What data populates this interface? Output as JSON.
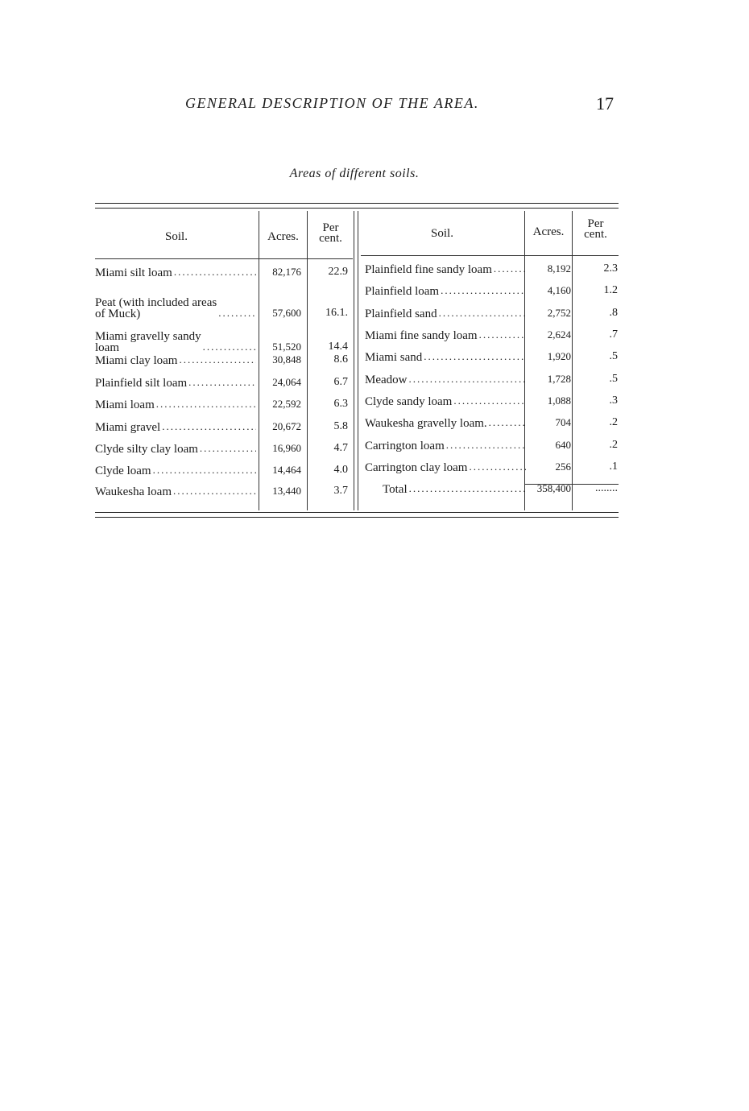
{
  "header": {
    "running_title": "GENERAL DESCRIPTION OF THE AREA.",
    "page_number": "17"
  },
  "caption": "Areas of different soils.",
  "table": {
    "columns": {
      "soil": "Soil.",
      "acres": "Acres.",
      "percent_line1": "Per",
      "percent_line2": "cent."
    },
    "left_rows": [
      {
        "soil": "Miami silt loam",
        "acres": "82,176",
        "percent": "22.9"
      },
      {
        "soil": "Peat (with included areas\n   of Muck)",
        "acres": "57,600",
        "percent": "16.1."
      },
      {
        "soil": "Miami gravelly sandy\n   loam",
        "acres": "51,520",
        "percent": "14.4"
      },
      {
        "soil": "Miami clay loam",
        "acres": "30,848",
        "percent": "8.6"
      },
      {
        "soil": "Plainfield silt loam",
        "acres": "24,064",
        "percent": "6.7"
      },
      {
        "soil": "Miami loam",
        "acres": "22,592",
        "percent": "6.3"
      },
      {
        "soil": "Miami gravel",
        "acres": "20,672",
        "percent": "5.8"
      },
      {
        "soil": "Clyde silty clay loam",
        "acres": "16,960",
        "percent": "4.7"
      },
      {
        "soil": "Clyde loam",
        "acres": "14,464",
        "percent": "4.0"
      },
      {
        "soil": "Waukesha loam",
        "acres": "13,440",
        "percent": "3.7"
      }
    ],
    "right_rows": [
      {
        "soil": "Plainfield fine sandy loam",
        "acres": "8,192",
        "percent": "2.3"
      },
      {
        "soil": "Plainfield loam",
        "acres": "4,160",
        "percent": "1.2"
      },
      {
        "soil": "Plainfield sand",
        "acres": "2,752",
        "percent": ".8"
      },
      {
        "soil": "Miami fine sandy loam",
        "acres": "2,624",
        "percent": ".7"
      },
      {
        "soil": "Miami sand",
        "acres": "1,920",
        "percent": ".5"
      },
      {
        "soil": "Meadow",
        "acres": "1,728",
        "percent": ".5"
      },
      {
        "soil": "Clyde sandy loam",
        "acres": "1,088",
        "percent": ".3"
      },
      {
        "soil": "Waukesha gravelly loam.",
        "acres": "704",
        "percent": ".2"
      },
      {
        "soil": "Carrington loam",
        "acres": "640",
        "percent": ".2"
      },
      {
        "soil": "Carrington clay loam",
        "acres": "256",
        "percent": ".1"
      }
    ],
    "total": {
      "label": "Total",
      "acres": "358,400",
      "percent": "........"
    }
  }
}
